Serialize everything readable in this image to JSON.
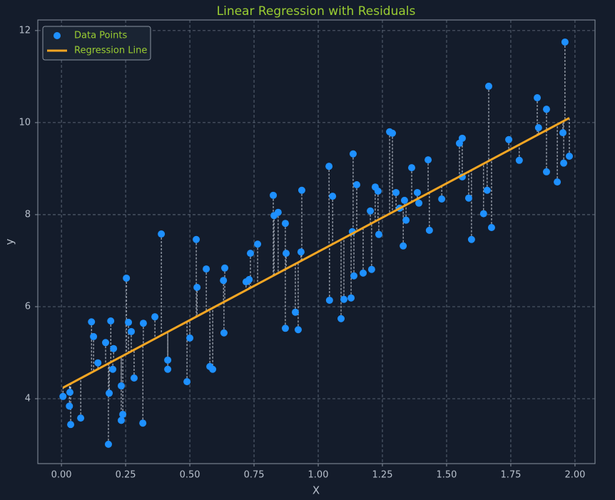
{
  "chart_data": {
    "type": "scatter",
    "title": "Linear Regression with Residuals",
    "x_label": "X",
    "y_label": "y",
    "xlim": [
      -0.092,
      2.078
    ],
    "ylim": [
      2.59,
      12.23
    ],
    "xticks": [
      {
        "value": 0,
        "label": "0.00"
      },
      {
        "value": 0.25,
        "label": "0.25"
      },
      {
        "value": 0.5,
        "label": "0.50"
      },
      {
        "value": 0.75,
        "label": "0.75"
      },
      {
        "value": 1,
        "label": "1.00"
      },
      {
        "value": 1.25,
        "label": "1.25"
      },
      {
        "value": 1.5,
        "label": "1.50"
      },
      {
        "value": 1.75,
        "label": "1.75"
      },
      {
        "value": 2,
        "label": "2.00"
      }
    ],
    "yticks": [
      4,
      6,
      8,
      10,
      12
    ],
    "grid": true,
    "legend": "upper left",
    "residuals": true,
    "series": [
      {
        "name": "Data Points",
        "type": "scatter",
        "color": "#1e90ff",
        "x": [
          0.006,
          0.033,
          0.031,
          0.036,
          0.075,
          0.117,
          0.125,
          0.142,
          0.172,
          0.183,
          0.186,
          0.192,
          0.203,
          0.2,
          0.233,
          0.233,
          0.239,
          0.253,
          0.261,
          0.272,
          0.283,
          0.317,
          0.319,
          0.364,
          0.389,
          0.414,
          0.414,
          0.489,
          0.5,
          0.525,
          0.528,
          0.564,
          0.578,
          0.589,
          0.631,
          0.636,
          0.633,
          0.719,
          0.731,
          0.736,
          0.764,
          0.825,
          0.828,
          0.844,
          0.872,
          0.875,
          0.872,
          0.911,
          0.922,
          0.933,
          0.936,
          1.042,
          1.044,
          1.056,
          1.089,
          1.1,
          1.128,
          1.136,
          1.139,
          1.133,
          1.15,
          1.175,
          1.203,
          1.208,
          1.222,
          1.233,
          1.236,
          1.278,
          1.289,
          1.303,
          1.317,
          1.331,
          1.336,
          1.342,
          1.364,
          1.386,
          1.392,
          1.428,
          1.433,
          1.481,
          1.55,
          1.561,
          1.561,
          1.586,
          1.597,
          1.644,
          1.658,
          1.664,
          1.675,
          1.742,
          1.783,
          1.853,
          1.858,
          1.889,
          1.889,
          1.931,
          1.953,
          1.956,
          1.961,
          1.978
        ],
        "values": [
          4.05,
          4.14,
          3.84,
          3.44,
          3.58,
          5.67,
          5.35,
          4.78,
          5.22,
          3.01,
          4.12,
          5.69,
          5.09,
          4.64,
          4.28,
          3.53,
          3.66,
          6.62,
          5.66,
          5.46,
          4.45,
          3.47,
          5.64,
          5.78,
          7.58,
          4.84,
          4.64,
          4.37,
          5.32,
          7.46,
          6.42,
          6.82,
          4.7,
          4.64,
          6.57,
          6.84,
          5.43,
          6.54,
          6.59,
          7.16,
          7.36,
          8.42,
          7.98,
          8.05,
          7.81,
          7.16,
          5.53,
          5.88,
          5.5,
          7.19,
          8.53,
          9.05,
          6.14,
          8.4,
          5.74,
          6.16,
          6.19,
          9.32,
          6.67,
          7.63,
          8.65,
          6.73,
          8.08,
          6.81,
          8.6,
          8.51,
          7.57,
          9.8,
          9.77,
          8.48,
          8.14,
          7.32,
          8.31,
          7.88,
          9.02,
          8.48,
          8.25,
          9.19,
          7.66,
          8.34,
          9.55,
          9.66,
          8.82,
          8.36,
          7.46,
          8.02,
          8.53,
          10.79,
          7.72,
          9.63,
          9.18,
          10.54,
          9.89,
          10.29,
          8.93,
          8.71,
          9.78,
          9.12,
          11.75,
          9.27
        ]
      },
      {
        "name": "Regression Line",
        "type": "line",
        "color": "#f5a623",
        "x": [
          0.006,
          1.978
        ],
        "values": [
          4.24,
          10.1
        ]
      }
    ]
  }
}
